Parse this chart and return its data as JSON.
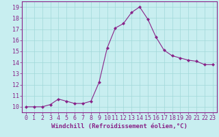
{
  "x": [
    0,
    1,
    2,
    3,
    4,
    5,
    6,
    7,
    8,
    9,
    10,
    11,
    12,
    13,
    14,
    15,
    16,
    17,
    18,
    19,
    20,
    21,
    22,
    23
  ],
  "y": [
    10.0,
    10.0,
    10.0,
    10.2,
    10.7,
    10.5,
    10.3,
    10.3,
    10.5,
    12.2,
    15.3,
    17.1,
    17.5,
    18.5,
    19.0,
    17.9,
    16.3,
    15.1,
    14.6,
    14.4,
    14.2,
    14.1,
    13.8,
    13.8
  ],
  "line_color": "#882288",
  "marker": "D",
  "marker_size": 2.0,
  "bg_color": "#c8eef0",
  "grid_color": "#a0d8d8",
  "xlabel": "Windchill (Refroidissement éolien,°C)",
  "xlabel_fontsize": 6.5,
  "xtick_labels": [
    "0",
    "1",
    "2",
    "3",
    "4",
    "5",
    "6",
    "7",
    "8",
    "9",
    "10",
    "11",
    "12",
    "13",
    "14",
    "15",
    "16",
    "17",
    "18",
    "19",
    "20",
    "21",
    "22",
    "23"
  ],
  "ytick_labels": [
    "10",
    "11",
    "12",
    "13",
    "14",
    "15",
    "16",
    "17",
    "18",
    "19"
  ],
  "ylim": [
    9.5,
    19.5
  ],
  "xlim": [
    -0.5,
    23.5
  ],
  "tick_fontsize": 6.0,
  "spine_color": "#882288"
}
